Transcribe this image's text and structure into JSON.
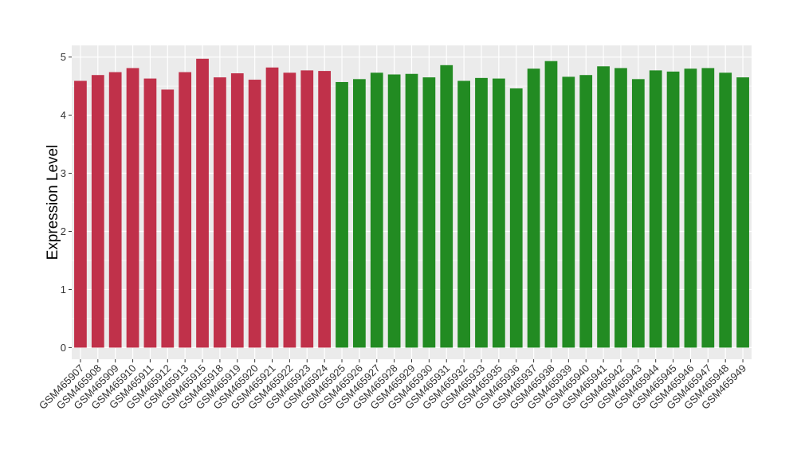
{
  "chart_data": {
    "type": "bar",
    "title": "",
    "xlabel": "",
    "ylabel": "Expression Level",
    "ylim": [
      -0.2,
      5.2
    ],
    "yticks": [
      0,
      1,
      2,
      3,
      4,
      5
    ],
    "grid": true,
    "legend": "none",
    "colors": {
      "group_a": "#c0314a",
      "group_b": "#228b22",
      "panel": "#ebebeb",
      "gridline": "#ffffff"
    },
    "categories": [
      "GSM465907",
      "GSM465908",
      "GSM465909",
      "GSM465910",
      "GSM465911",
      "GSM465912",
      "GSM465913",
      "GSM465915",
      "GSM465918",
      "GSM465919",
      "GSM465920",
      "GSM465921",
      "GSM465922",
      "GSM465923",
      "GSM465924",
      "GSM465925",
      "GSM465926",
      "GSM465927",
      "GSM465928",
      "GSM465929",
      "GSM465930",
      "GSM465931",
      "GSM465932",
      "GSM465933",
      "GSM465935",
      "GSM465936",
      "GSM465937",
      "GSM465938",
      "GSM465939",
      "GSM465940",
      "GSM465941",
      "GSM465942",
      "GSM465943",
      "GSM465944",
      "GSM465945",
      "GSM465946",
      "GSM465947",
      "GSM465948",
      "GSM465949"
    ],
    "values": [
      4.59,
      4.69,
      4.74,
      4.81,
      4.63,
      4.44,
      4.74,
      4.97,
      4.65,
      4.72,
      4.61,
      4.82,
      4.73,
      4.77,
      4.76,
      4.57,
      4.62,
      4.73,
      4.7,
      4.71,
      4.65,
      4.86,
      4.59,
      4.64,
      4.63,
      4.46,
      4.8,
      4.93,
      4.66,
      4.69,
      4.84,
      4.81,
      4.62,
      4.77,
      4.75,
      4.8,
      4.81,
      4.73,
      4.65
    ],
    "groups": [
      "a",
      "a",
      "a",
      "a",
      "a",
      "a",
      "a",
      "a",
      "a",
      "a",
      "a",
      "a",
      "a",
      "a",
      "a",
      "b",
      "b",
      "b",
      "b",
      "b",
      "b",
      "b",
      "b",
      "b",
      "b",
      "b",
      "b",
      "b",
      "b",
      "b",
      "b",
      "b",
      "b",
      "b",
      "b",
      "b",
      "b",
      "b",
      "b"
    ]
  }
}
